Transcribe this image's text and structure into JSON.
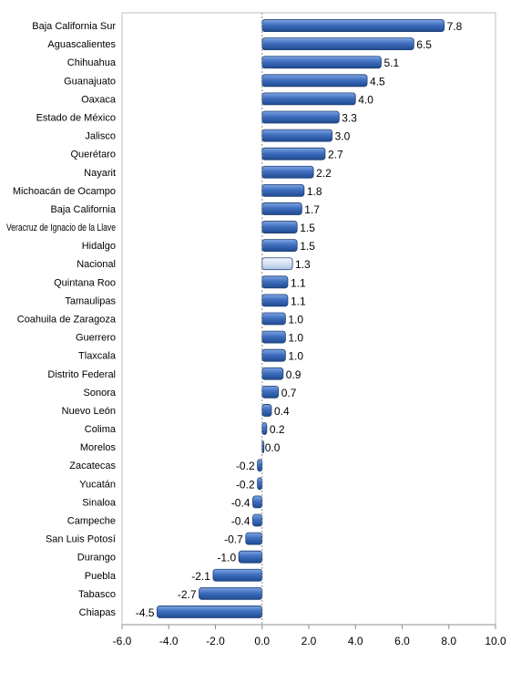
{
  "chart_data": {
    "type": "bar",
    "orientation": "horizontal",
    "title": "",
    "xlabel": "",
    "ylabel": "",
    "xlim": [
      -6.0,
      10.0
    ],
    "x_ticks": [
      "-6.0",
      "-4.0",
      "-2.0",
      "0.0",
      "2.0",
      "4.0",
      "6.0",
      "8.0",
      "10.0"
    ],
    "grid": false,
    "legend": "none",
    "categories": [
      "Baja California Sur",
      "Aguascalientes",
      "Chihuahua",
      "Guanajuato",
      "Oaxaca",
      "Estado de México",
      "Jalisco",
      "Querétaro",
      "Nayarit",
      "Michoacán de Ocampo",
      "Baja California",
      "Veracruz de Ignacio de la Llave",
      "Hidalgo",
      "Nacional",
      "Quintana Roo",
      "Tamaulipas",
      "Coahuila de Zaragoza",
      "Guerrero",
      "Tlaxcala",
      "Distrito Federal",
      "Sonora",
      "Nuevo León",
      "Colima",
      "Morelos",
      "Zacatecas",
      "Yucatán",
      "Sinaloa",
      "Campeche",
      "San Luis Potosí",
      "Durango",
      "Puebla",
      "Tabasco",
      "Chiapas"
    ],
    "values": [
      7.8,
      6.5,
      5.1,
      4.5,
      4.0,
      3.3,
      3.0,
      2.7,
      2.2,
      1.8,
      1.7,
      1.5,
      1.5,
      1.3,
      1.1,
      1.1,
      1.0,
      1.0,
      1.0,
      0.9,
      0.7,
      0.4,
      0.2,
      0.0,
      -0.2,
      -0.2,
      -0.4,
      -0.4,
      -0.7,
      -1.0,
      -2.1,
      -2.7,
      -4.5
    ],
    "value_labels": [
      "7.8",
      "6.5",
      "5.1",
      "4.5",
      "4.0",
      "3.3",
      "3.0",
      "2.7",
      "2.2",
      "1.8",
      "1.7",
      "1.5",
      "1.5",
      "1.3",
      "1.1",
      "1.1",
      "1.0",
      "1.0",
      "1.0",
      "0.9",
      "0.7",
      "0.4",
      "0.2",
      "0.0",
      "-0.2",
      "-0.2",
      "-0.4",
      "-0.4",
      "-0.7",
      "-1.0",
      "-2.1",
      "-2.7",
      "-4.5"
    ],
    "highlight_category": "Nacional",
    "colors": {
      "bar_fill": "#3f6fbf",
      "bar_highlight_fill": "#d6e3f4",
      "bar_stroke": "#1f3f73",
      "axis": "#8c8c8c",
      "text": "#000000"
    }
  }
}
